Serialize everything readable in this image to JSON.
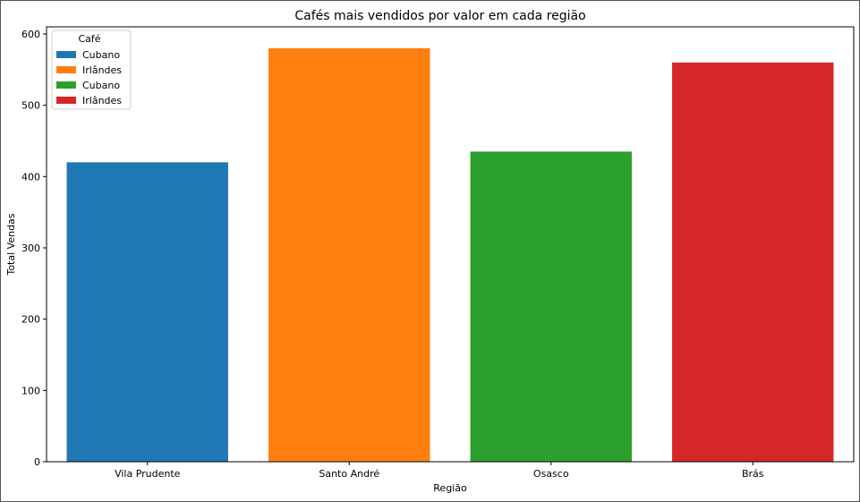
{
  "chart_data": {
    "type": "bar",
    "title": "Cafés mais vendidos por valor em cada região",
    "xlabel": "Região",
    "ylabel": "Total Vendas",
    "categories": [
      "Vila Prudente",
      "Santo André",
      "Osasco",
      "Brás"
    ],
    "values": [
      420,
      580,
      435,
      560
    ],
    "bar_colors": [
      "#1f77b4",
      "#ff7f0e",
      "#2ca02c",
      "#d62728"
    ],
    "ylim": [
      0,
      610
    ],
    "yticks": [
      0,
      100,
      200,
      300,
      400,
      500,
      600
    ],
    "grid": false,
    "legend": {
      "title": "Café",
      "placement": "top-left",
      "entries": [
        {
          "label": "Cubano",
          "color": "#1f77b4"
        },
        {
          "label": "Irlândes",
          "color": "#ff7f0e"
        },
        {
          "label": "Cubano",
          "color": "#2ca02c"
        },
        {
          "label": "Irlândes",
          "color": "#d62728"
        }
      ]
    }
  }
}
